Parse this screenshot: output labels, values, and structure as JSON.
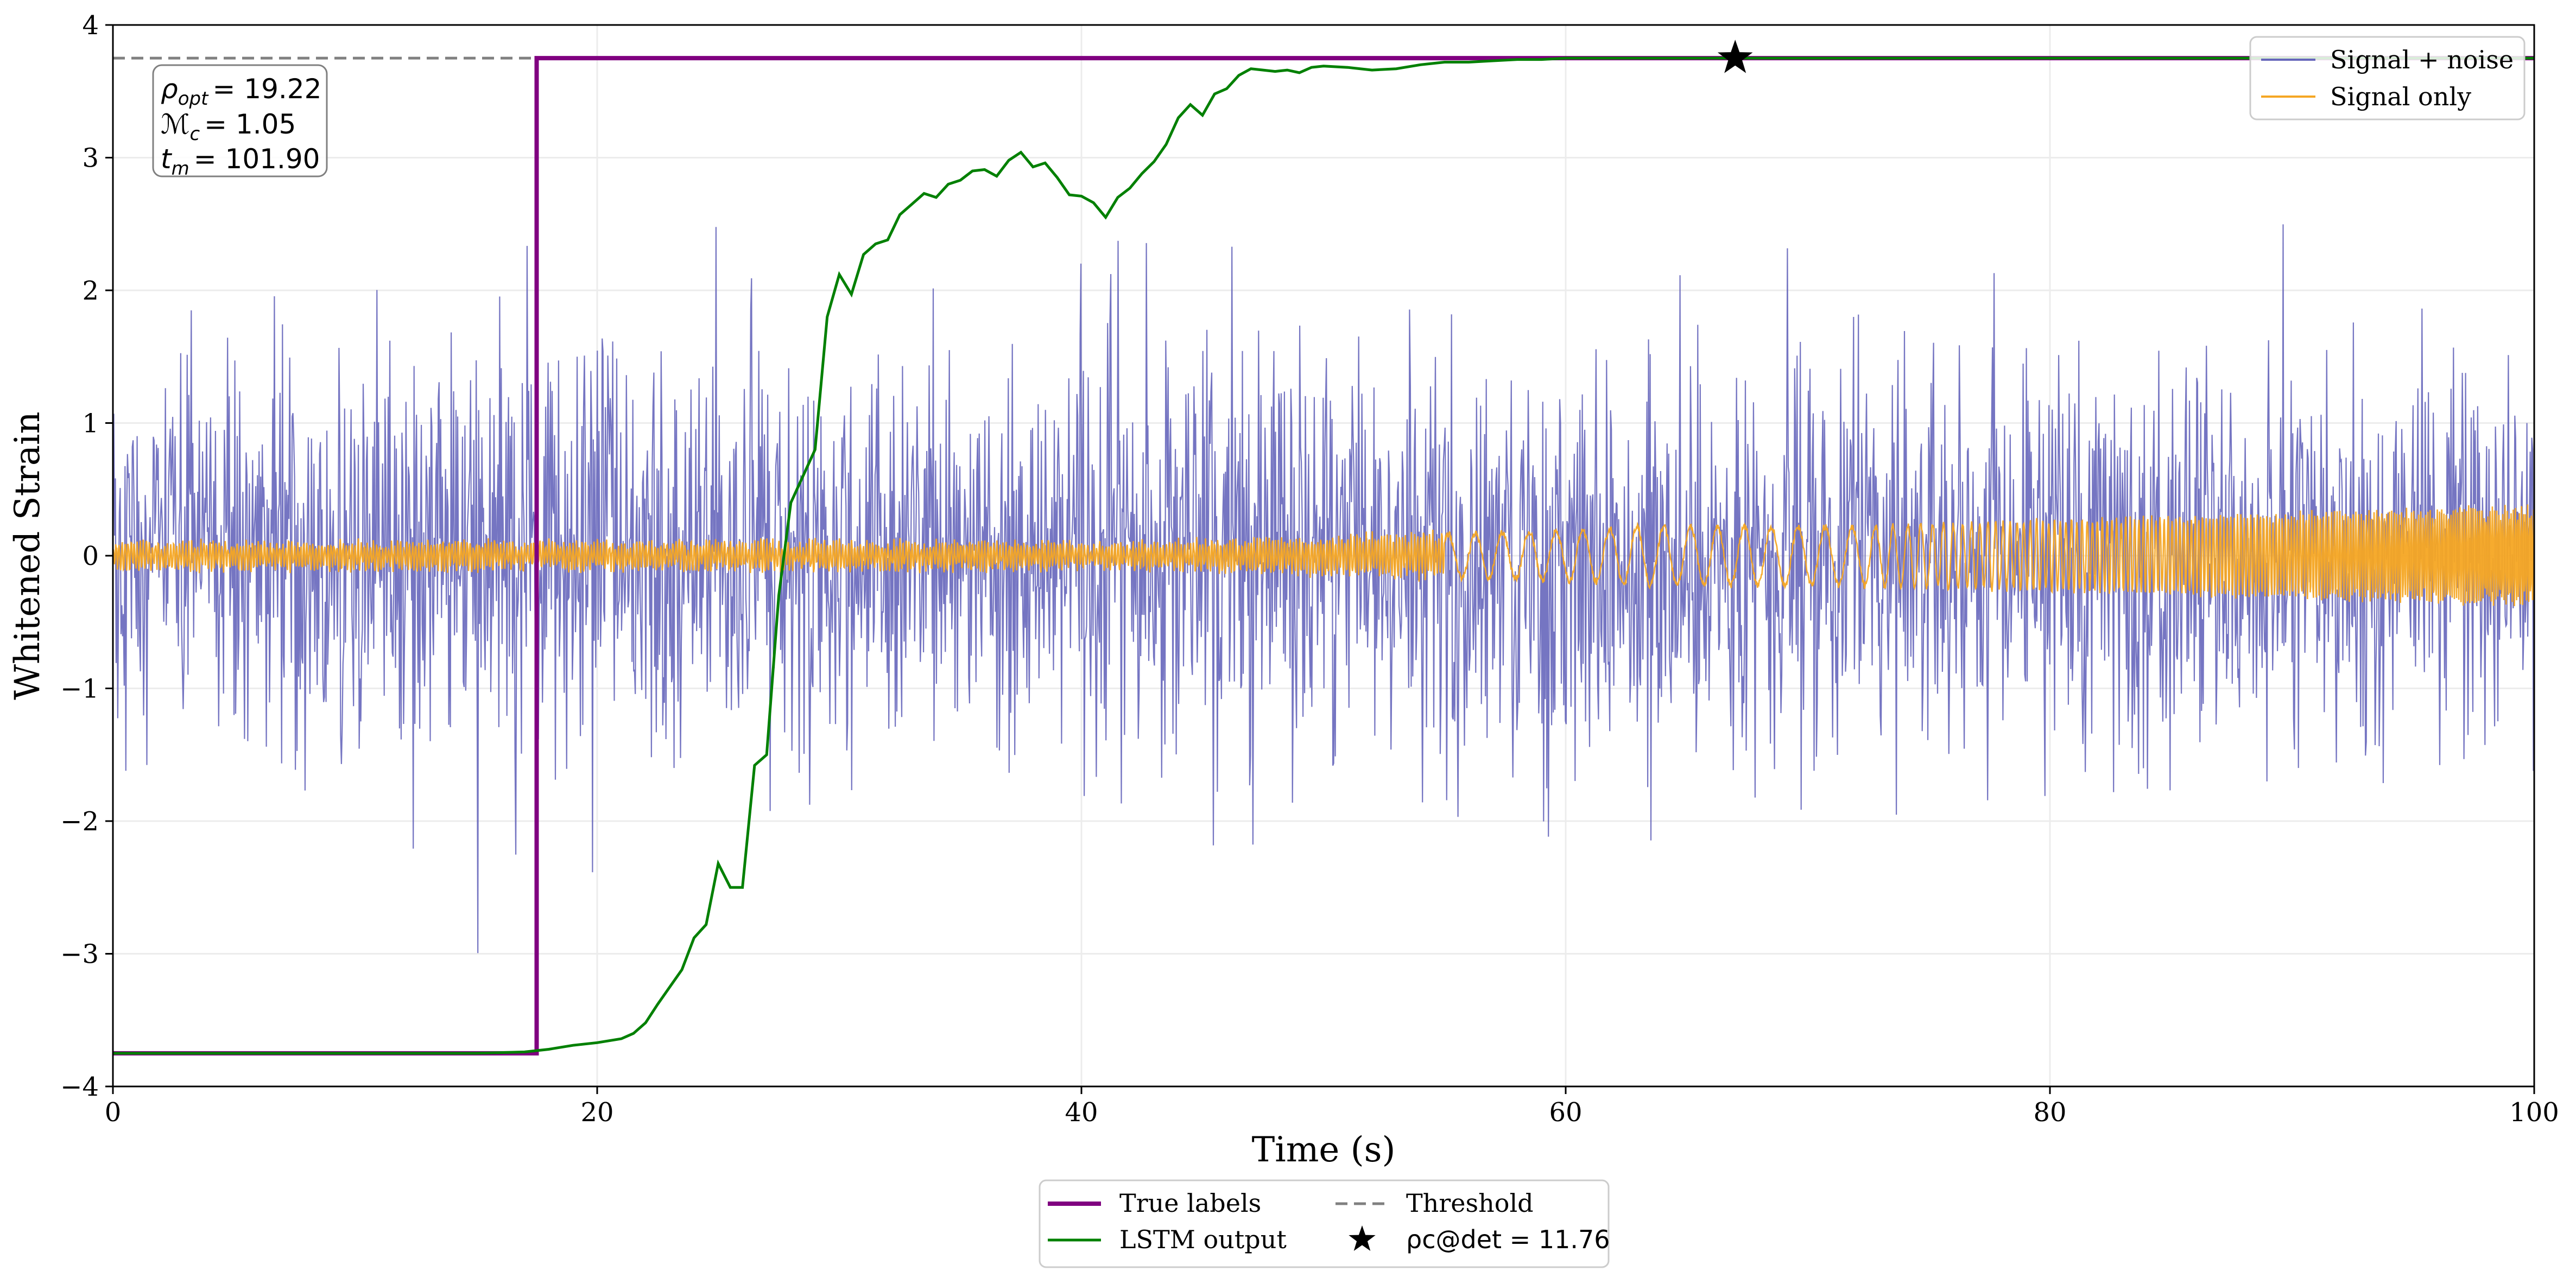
{
  "chart_data": {
    "type": "line",
    "xlabel": "Time (s)",
    "ylabel": "Whitened Strain",
    "xlim": [
      0,
      100
    ],
    "ylim": [
      -4,
      4
    ],
    "xticks": [
      0,
      20,
      40,
      60,
      80,
      100
    ],
    "xtick_labels": [
      "0",
      "20",
      "40",
      "60",
      "80",
      "100"
    ],
    "yticks": [
      -4,
      -3,
      -2,
      -1,
      0,
      1,
      2,
      3,
      4
    ],
    "ytick_labels": [
      "−4",
      "−3",
      "−2",
      "−1",
      "0",
      "1",
      "2",
      "3",
      "4"
    ],
    "grid": true,
    "threshold": 3.75,
    "detection": {
      "x": 67.0,
      "y": 3.75,
      "label": "ρc@det = 11.76"
    },
    "annotation": {
      "rho_opt": {
        "symbol": "ρ",
        "subscript": "opt",
        "value": "= 19.22"
      },
      "chirp_mass": {
        "symbol": "ℳ",
        "subscript": "c",
        "value": "= 1.05"
      },
      "merger_time": {
        "symbol": "t",
        "subscript": "m",
        "value": "= 101.90"
      }
    },
    "legend_upper": {
      "placement": "top-right",
      "entries": [
        {
          "label": "Signal + noise",
          "color": "#6666bb"
        },
        {
          "label": "Signal only",
          "color": "#f5a623"
        }
      ]
    },
    "legend_lower": {
      "placement": "below-center",
      "entries": [
        {
          "label": "True labels",
          "color": "#800080",
          "style": "solid"
        },
        {
          "label": "Threshold",
          "color": "#808080",
          "style": "dashed"
        },
        {
          "label": "LSTM output",
          "color": "#008000",
          "style": "solid"
        },
        {
          "label": "ρc@det = 11.76",
          "color": "#000000",
          "style": "star"
        }
      ]
    },
    "series": [
      {
        "name": "True labels",
        "color": "#800080",
        "x": [
          0,
          17.5,
          17.5,
          100
        ],
        "y": [
          -3.75,
          -3.75,
          3.75,
          3.75
        ]
      },
      {
        "name": "LSTM output",
        "color": "#008000",
        "x": [
          0,
          5,
          10,
          15,
          17,
          18,
          19,
          20,
          21,
          21.5,
          22,
          22.5,
          23,
          23.5,
          24,
          24.5,
          25,
          25.5,
          26,
          26.5,
          27,
          27.5,
          28,
          28.5,
          29,
          29.5,
          30,
          30.5,
          31,
          31.5,
          32,
          32.5,
          33,
          33.5,
          34,
          34.5,
          35,
          35.5,
          36,
          36.5,
          37,
          37.5,
          38,
          38.5,
          39,
          39.5,
          40,
          40.5,
          41,
          41.5,
          42,
          42.5,
          43,
          43.5,
          44,
          44.5,
          45,
          45.5,
          46,
          46.5,
          47,
          47.5,
          48,
          48.5,
          49,
          49.5,
          50,
          51,
          52,
          53,
          54,
          55,
          56,
          57,
          58,
          59,
          60,
          62,
          64,
          66,
          67,
          70,
          75,
          80,
          85,
          90,
          95,
          100
        ],
        "y": [
          -3.75,
          -3.75,
          -3.75,
          -3.75,
          -3.74,
          -3.72,
          -3.69,
          -3.67,
          -3.64,
          -3.6,
          -3.52,
          -3.38,
          -3.25,
          -3.12,
          -2.88,
          -2.78,
          -2.32,
          -2.5,
          -2.5,
          -1.58,
          -1.5,
          -0.3,
          0.4,
          0.6,
          0.8,
          1.8,
          2.12,
          1.97,
          2.27,
          2.35,
          2.38,
          2.57,
          2.65,
          2.73,
          2.7,
          2.8,
          2.83,
          2.9,
          2.91,
          2.86,
          2.98,
          3.04,
          2.93,
          2.96,
          2.85,
          2.72,
          2.71,
          2.66,
          2.55,
          2.7,
          2.77,
          2.88,
          2.97,
          3.1,
          3.3,
          3.4,
          3.32,
          3.48,
          3.52,
          3.62,
          3.67,
          3.66,
          3.65,
          3.66,
          3.64,
          3.68,
          3.69,
          3.68,
          3.66,
          3.67,
          3.7,
          3.72,
          3.72,
          3.73,
          3.74,
          3.74,
          3.75,
          3.75,
          3.75,
          3.75,
          3.75,
          3.75,
          3.75,
          3.75,
          3.75,
          3.75,
          3.75,
          3.75
        ]
      },
      {
        "name": "Signal + noise",
        "color": "#6666bb",
        "generator": "gaussian noise, n=3000, sigma≈0.75, range ≈3.4"
      },
      {
        "name": "Signal only",
        "color": "#f5a623",
        "generator": "chirp, amplitude 0.1 → 0.35"
      }
    ]
  }
}
